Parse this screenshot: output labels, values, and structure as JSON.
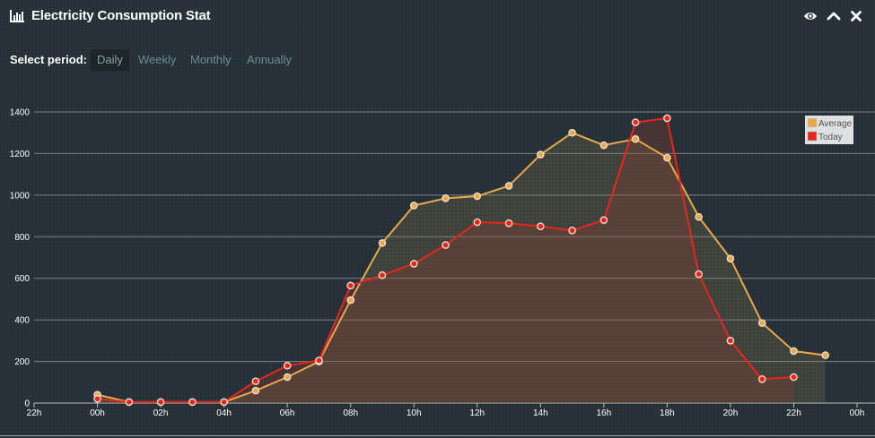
{
  "window": {
    "title": "Electricity Consumption Stat",
    "icons": [
      "bar-chart-icon",
      "eye-icon",
      "chevron-up-icon",
      "close-icon"
    ]
  },
  "period": {
    "label": "Select period:",
    "tabs": [
      {
        "label": "Daily",
        "active": true
      },
      {
        "label": "Weekly",
        "active": false
      },
      {
        "label": "Monthly",
        "active": false
      },
      {
        "label": "Annually",
        "active": false
      }
    ]
  },
  "chart_data": {
    "type": "area",
    "categories": [
      "22h",
      "00h",
      "02h",
      "04h",
      "06h",
      "08h",
      "10h",
      "12h",
      "14h",
      "16h",
      "18h",
      "20h",
      "22h",
      "00h"
    ],
    "x_hours": [
      -2,
      24
    ],
    "yticks": [
      0,
      200,
      400,
      600,
      800,
      1000,
      1200,
      1400
    ],
    "ylim": [
      0,
      1400
    ],
    "grid": true,
    "legend_position": "top-right",
    "series": [
      {
        "name": "Average",
        "color": "#e8a84c",
        "fill": "rgba(150,130,80,0.22)",
        "x": [
          0,
          1,
          2,
          3,
          4,
          5,
          6,
          7,
          8,
          9,
          10,
          11,
          12,
          13,
          14,
          15,
          16,
          17,
          18,
          19,
          20,
          21,
          22,
          23
        ],
        "values": [
          40,
          5,
          5,
          5,
          5,
          60,
          125,
          200,
          495,
          770,
          950,
          985,
          995,
          1045,
          1195,
          1300,
          1240,
          1270,
          1180,
          895,
          695,
          385,
          250,
          230
        ]
      },
      {
        "name": "Today",
        "color": "#e8261e",
        "fill": "rgba(150,60,45,0.30)",
        "x": [
          0,
          1,
          2,
          3,
          4,
          5,
          6,
          7,
          8,
          9,
          10,
          11,
          12,
          13,
          14,
          15,
          16,
          17,
          18,
          19,
          20,
          21,
          22
        ],
        "values": [
          20,
          5,
          5,
          5,
          5,
          105,
          180,
          205,
          565,
          615,
          670,
          760,
          870,
          865,
          850,
          830,
          880,
          1350,
          1370,
          620,
          300,
          115,
          125
        ]
      }
    ]
  }
}
